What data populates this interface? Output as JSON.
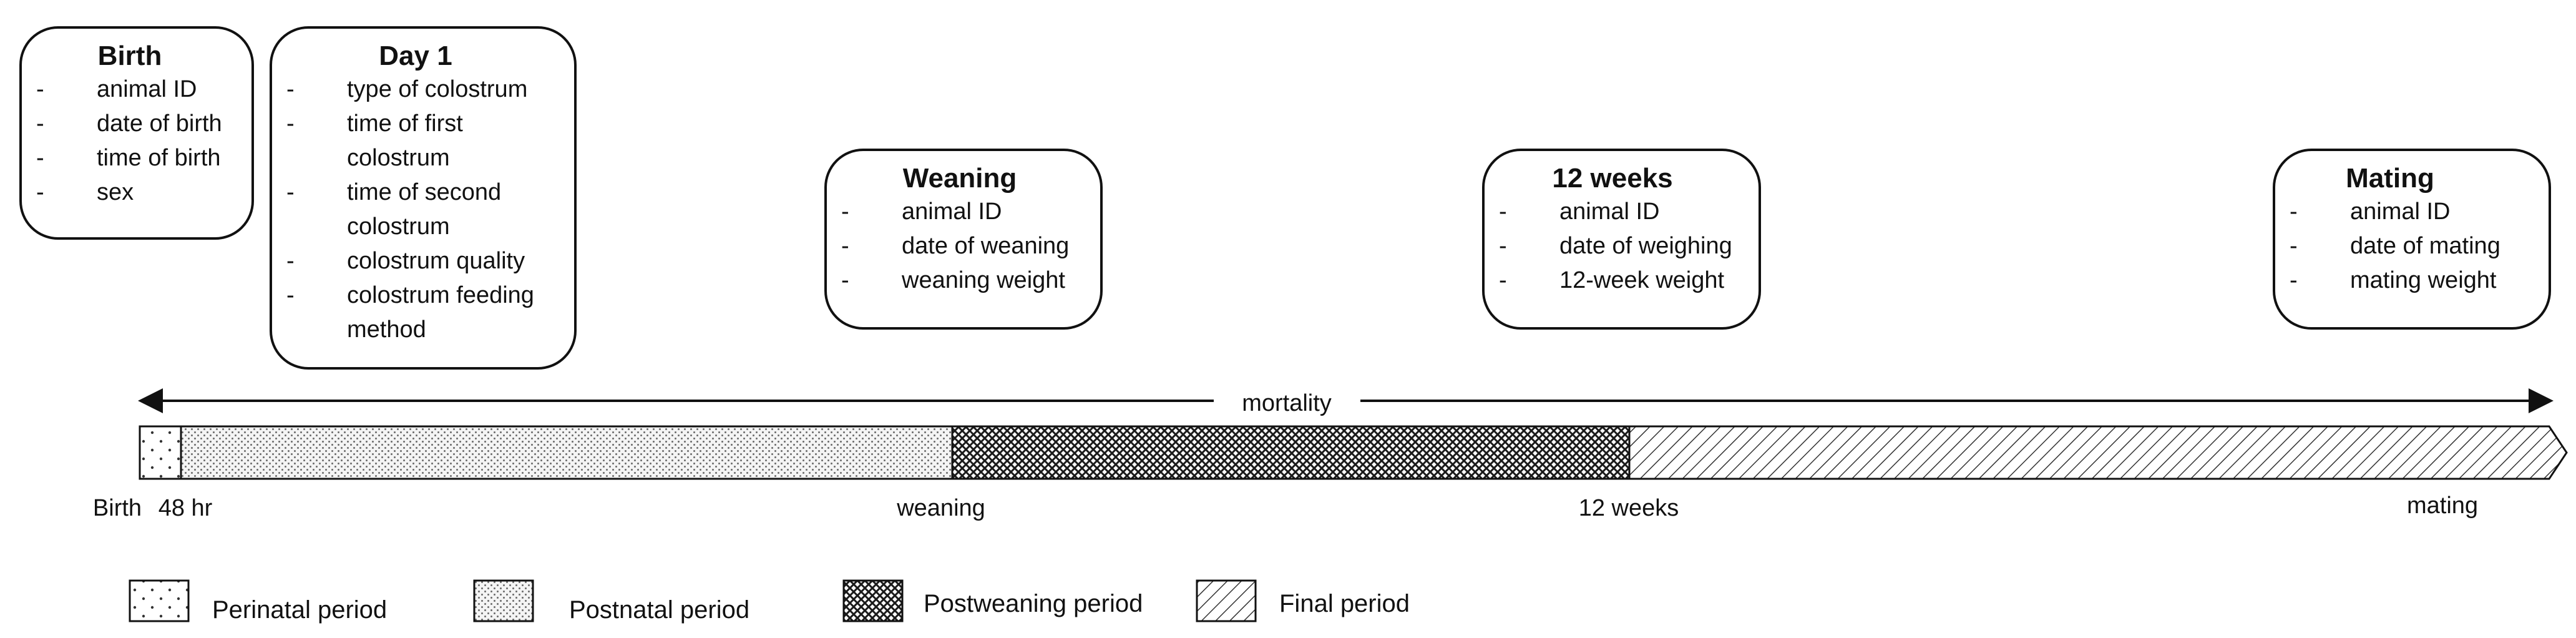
{
  "cards": [
    {
      "id": "birth",
      "title": "Birth",
      "items": [
        [
          "animal ID"
        ],
        [
          "date of birth"
        ],
        [
          "time of birth"
        ],
        [
          "sex"
        ]
      ]
    },
    {
      "id": "day1",
      "title": "Day 1",
      "items": [
        [
          "type of colostrum"
        ],
        [
          "time of first",
          "colostrum"
        ],
        [
          "time of second",
          "colostrum"
        ],
        [
          "colostrum quality"
        ],
        [
          "colostrum feeding",
          "method"
        ]
      ]
    },
    {
      "id": "weaning",
      "title": "Weaning",
      "items": [
        [
          "animal ID"
        ],
        [
          "date of weaning"
        ],
        [
          "weaning weight"
        ]
      ]
    },
    {
      "id": "12weeks",
      "title": "12 weeks",
      "items": [
        [
          "animal ID"
        ],
        [
          "date of weighing"
        ],
        [
          "12-week weight"
        ]
      ]
    },
    {
      "id": "mating",
      "title": "Mating",
      "items": [
        [
          "animal ID"
        ],
        [
          "date of mating"
        ],
        [
          "mating weight"
        ]
      ]
    }
  ],
  "bullet": "-",
  "mortality_label": "mortality",
  "timeline_labels": [
    {
      "id": "birth",
      "text": "Birth"
    },
    {
      "id": "48hr",
      "text": "48 hr"
    },
    {
      "id": "weaning",
      "text": "weaning"
    },
    {
      "id": "12weeks",
      "text": "12 weeks"
    },
    {
      "id": "mating",
      "text": "mating"
    }
  ],
  "legend": [
    {
      "id": "perinatal",
      "label": "Perinatal period",
      "pattern": "sparse-dots"
    },
    {
      "id": "postnatal",
      "label": "Postnatal period",
      "pattern": "dense-dots"
    },
    {
      "id": "postweaning",
      "label": "Postweaning period",
      "pattern": "crosshatch"
    },
    {
      "id": "final",
      "label": "Final period",
      "pattern": "diagonal-lines"
    }
  ]
}
